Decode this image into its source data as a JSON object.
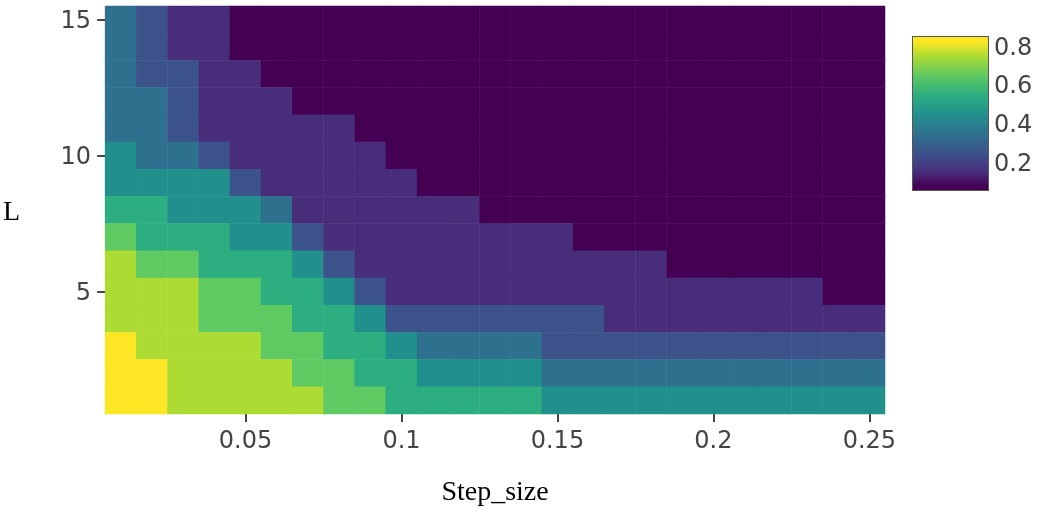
{
  "chart_data": {
    "type": "heatmap",
    "xlabel": "Step_size",
    "ylabel": "L",
    "categories": [
      null,
      null,
      null,
      null,
      "0.05",
      null,
      null,
      null,
      null,
      "0.1",
      null,
      null,
      null,
      null,
      "0.15",
      null,
      null,
      null,
      null,
      "0.2",
      null,
      null,
      null,
      null,
      "0.25"
    ],
    "y_categories": [
      "15",
      null,
      null,
      null,
      null,
      "10",
      null,
      null,
      null,
      null,
      "5",
      null,
      null,
      null,
      null
    ],
    "clim": [
      0.06,
      0.85
    ],
    "cticks": [
      0.2,
      0.4,
      0.6,
      0.8
    ],
    "colors": [
      "#440154",
      "#482d7b",
      "#3c528b",
      "#2e718e",
      "#21908c",
      "#2cae80",
      "#5fc962",
      "#acdb33",
      "#fde725"
    ],
    "cells": [
      [
        0.35,
        0.25,
        0.15,
        0.15,
        0.08,
        0.08,
        0.08,
        0.08,
        0.08,
        0.08,
        0.08,
        0.08,
        0.08,
        0.08,
        0.08,
        0.08,
        0.08,
        0.08,
        0.08,
        0.08,
        0.08,
        0.08,
        0.08,
        0.08,
        0.08
      ],
      [
        0.35,
        0.25,
        0.15,
        0.15,
        0.08,
        0.08,
        0.08,
        0.08,
        0.08,
        0.08,
        0.08,
        0.08,
        0.08,
        0.08,
        0.08,
        0.08,
        0.08,
        0.08,
        0.08,
        0.08,
        0.08,
        0.08,
        0.08,
        0.08,
        0.08
      ],
      [
        0.35,
        0.25,
        0.25,
        0.15,
        0.15,
        0.08,
        0.08,
        0.08,
        0.08,
        0.08,
        0.08,
        0.08,
        0.08,
        0.08,
        0.08,
        0.08,
        0.08,
        0.08,
        0.08,
        0.08,
        0.08,
        0.08,
        0.08,
        0.08,
        0.08
      ],
      [
        0.35,
        0.35,
        0.25,
        0.15,
        0.15,
        0.15,
        0.08,
        0.08,
        0.08,
        0.08,
        0.08,
        0.08,
        0.08,
        0.08,
        0.08,
        0.08,
        0.08,
        0.08,
        0.08,
        0.08,
        0.08,
        0.08,
        0.08,
        0.08,
        0.08
      ],
      [
        0.35,
        0.35,
        0.25,
        0.15,
        0.15,
        0.15,
        0.15,
        0.15,
        0.08,
        0.08,
        0.08,
        0.08,
        0.08,
        0.08,
        0.08,
        0.08,
        0.08,
        0.08,
        0.08,
        0.08,
        0.08,
        0.08,
        0.08,
        0.08,
        0.08
      ],
      [
        0.45,
        0.35,
        0.35,
        0.25,
        0.15,
        0.15,
        0.15,
        0.15,
        0.15,
        0.08,
        0.08,
        0.08,
        0.08,
        0.08,
        0.08,
        0.08,
        0.08,
        0.08,
        0.08,
        0.08,
        0.08,
        0.08,
        0.08,
        0.08,
        0.08
      ],
      [
        0.45,
        0.45,
        0.45,
        0.45,
        0.25,
        0.15,
        0.15,
        0.15,
        0.15,
        0.15,
        0.08,
        0.08,
        0.08,
        0.08,
        0.08,
        0.08,
        0.08,
        0.08,
        0.08,
        0.08,
        0.08,
        0.08,
        0.08,
        0.08,
        0.08
      ],
      [
        0.55,
        0.55,
        0.45,
        0.45,
        0.45,
        0.35,
        0.15,
        0.15,
        0.15,
        0.15,
        0.15,
        0.15,
        0.08,
        0.08,
        0.08,
        0.08,
        0.08,
        0.08,
        0.08,
        0.08,
        0.08,
        0.08,
        0.08,
        0.08,
        0.08
      ],
      [
        0.65,
        0.55,
        0.55,
        0.55,
        0.45,
        0.45,
        0.25,
        0.15,
        0.15,
        0.15,
        0.15,
        0.15,
        0.15,
        0.15,
        0.15,
        0.08,
        0.08,
        0.08,
        0.08,
        0.08,
        0.08,
        0.08,
        0.08,
        0.08,
        0.08
      ],
      [
        0.75,
        0.65,
        0.65,
        0.55,
        0.55,
        0.55,
        0.45,
        0.25,
        0.15,
        0.15,
        0.15,
        0.15,
        0.15,
        0.15,
        0.15,
        0.15,
        0.15,
        0.15,
        0.08,
        0.08,
        0.08,
        0.08,
        0.08,
        0.08,
        0.08
      ],
      [
        0.75,
        0.75,
        0.75,
        0.65,
        0.65,
        0.55,
        0.55,
        0.45,
        0.25,
        0.15,
        0.15,
        0.15,
        0.15,
        0.15,
        0.15,
        0.15,
        0.15,
        0.15,
        0.15,
        0.15,
        0.15,
        0.15,
        0.15,
        0.08,
        0.08
      ],
      [
        0.75,
        0.75,
        0.75,
        0.65,
        0.65,
        0.65,
        0.55,
        0.55,
        0.45,
        0.25,
        0.25,
        0.25,
        0.25,
        0.25,
        0.25,
        0.25,
        0.15,
        0.15,
        0.15,
        0.15,
        0.15,
        0.15,
        0.15,
        0.15,
        0.15
      ],
      [
        0.83,
        0.75,
        0.75,
        0.75,
        0.75,
        0.65,
        0.65,
        0.55,
        0.55,
        0.45,
        0.35,
        0.35,
        0.35,
        0.35,
        0.25,
        0.25,
        0.25,
        0.25,
        0.25,
        0.25,
        0.25,
        0.25,
        0.25,
        0.25,
        0.25
      ],
      [
        0.83,
        0.83,
        0.75,
        0.75,
        0.75,
        0.75,
        0.65,
        0.65,
        0.55,
        0.55,
        0.45,
        0.45,
        0.45,
        0.45,
        0.35,
        0.35,
        0.35,
        0.35,
        0.35,
        0.35,
        0.35,
        0.35,
        0.35,
        0.35,
        0.35
      ],
      [
        0.83,
        0.83,
        0.75,
        0.75,
        0.75,
        0.75,
        0.75,
        0.65,
        0.65,
        0.55,
        0.55,
        0.55,
        0.55,
        0.55,
        0.45,
        0.45,
        0.45,
        0.45,
        0.45,
        0.45,
        0.45,
        0.45,
        0.45,
        0.45,
        0.45
      ]
    ]
  }
}
